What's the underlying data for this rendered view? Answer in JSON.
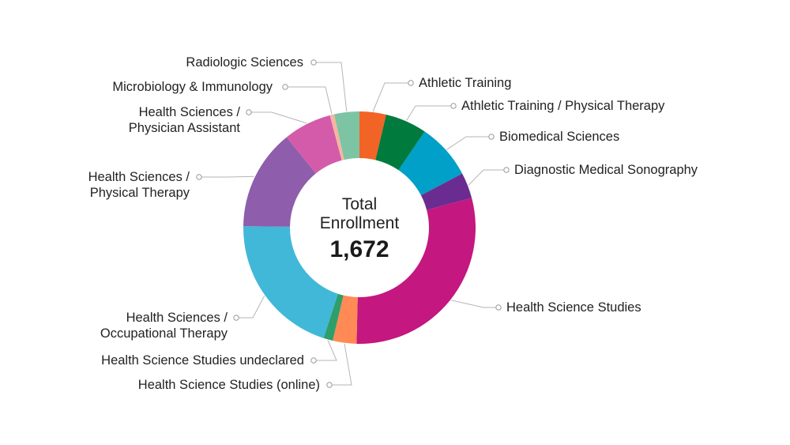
{
  "chart_data": {
    "type": "pie",
    "variant": "donut",
    "center": {
      "line1": "Total",
      "line2": "Enrollment",
      "total": "1,672"
    },
    "slices": [
      {
        "label": [
          "Athletic Training"
        ],
        "value": 3.7,
        "color": "#F26326"
      },
      {
        "label": [
          "Athletic Training / Physical Therapy"
        ],
        "value": 5.8,
        "color": "#007A3D"
      },
      {
        "label": [
          "Biomedical Sciences"
        ],
        "value": 7.8,
        "color": "#00A0C8"
      },
      {
        "label": [
          "Diagnostic Medical Sonography"
        ],
        "value": 3.6,
        "color": "#6B2C91"
      },
      {
        "label": [
          "Health Science Studies"
        ],
        "value": 29.5,
        "color": "#C4177F"
      },
      {
        "label": [
          "Health Science Studies (online)"
        ],
        "value": 3.3,
        "color": "#FF8A55"
      },
      {
        "label": [
          "Health Science Studies undeclared"
        ],
        "value": 1.3,
        "color": "#2E9E6A"
      },
      {
        "label": [
          "Health Sciences /",
          "Occupational Therapy"
        ],
        "value": 20.2,
        "color": "#41B8D8"
      },
      {
        "label": [
          "Health Sciences /",
          "Physical Therapy"
        ],
        "value": 14.0,
        "color": "#8E5DAB"
      },
      {
        "label": [
          "Health Sciences /",
          "Physician Assistant"
        ],
        "value": 6.7,
        "color": "#D45BAA"
      },
      {
        "label": [
          "Microbiology & Immunology"
        ],
        "value": 0.6,
        "color": "#F6B5A0"
      },
      {
        "label": [
          "Radiologic Sciences"
        ],
        "value": 3.5,
        "color": "#7DC4A4"
      }
    ]
  }
}
